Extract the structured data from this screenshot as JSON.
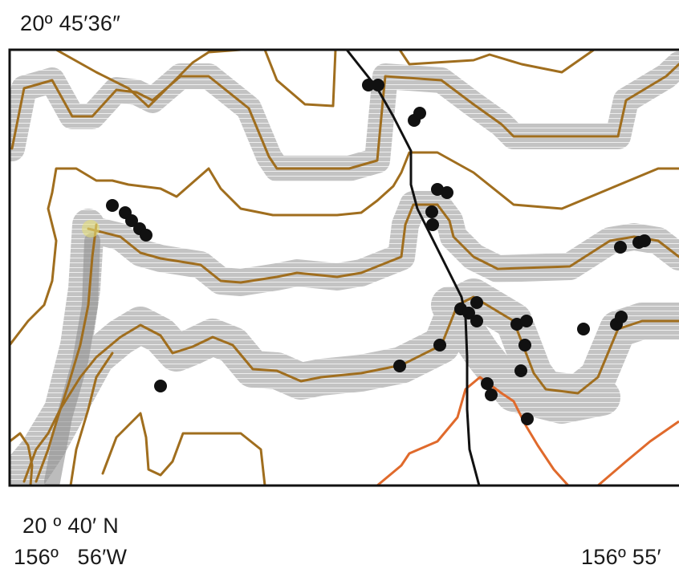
{
  "labels": {
    "top_latitude": "20º 45′36″",
    "bottom_latitude": "20 º 40′ N",
    "left_longitude": "156º   56′W",
    "right_longitude": "156º 55′"
  },
  "colors": {
    "frame": "#111111",
    "contour": "#a06e1e",
    "secondary_contour": "#e06a2c",
    "road": "#111111",
    "buffer": "#b9b9b9",
    "buffer_dark": "#8a8a8a",
    "point": "#111111",
    "highlight": "#e6e07a"
  }
}
